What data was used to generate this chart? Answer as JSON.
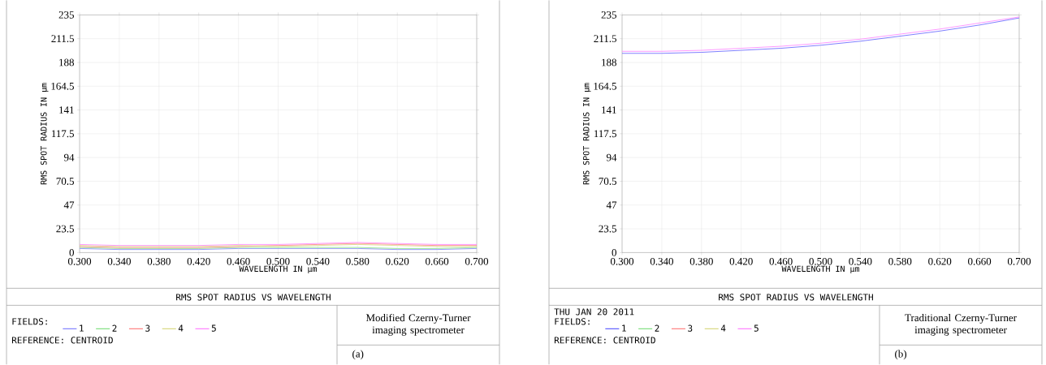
{
  "chart_data": [
    {
      "type": "line",
      "title": "RMS SPOT RADIUS VS WAVELENGTH",
      "xlabel": "WAVELENGTH IN µm",
      "ylabel": "RMS SPOT RADIUS IN µm",
      "x": [
        0.3,
        0.34,
        0.38,
        0.42,
        0.46,
        0.5,
        0.54,
        0.58,
        0.62,
        0.66,
        0.7
      ],
      "series": [
        {
          "name": "1",
          "color": "#8080ff",
          "values": [
            4,
            3,
            3,
            3,
            4,
            4,
            4,
            4,
            3,
            3,
            4
          ]
        },
        {
          "name": "2",
          "color": "#80e080",
          "values": [
            5,
            4,
            4,
            4,
            5,
            5,
            5,
            5,
            4,
            4,
            5
          ]
        },
        {
          "name": "3",
          "color": "#ff8080",
          "values": [
            6,
            5,
            5,
            5,
            6,
            7,
            8,
            9,
            8,
            7,
            7
          ]
        },
        {
          "name": "4",
          "color": "#d8d880",
          "values": [
            7,
            6,
            6,
            6,
            7,
            6,
            7,
            8,
            7,
            6,
            6
          ]
        },
        {
          "name": "5",
          "color": "#ff80ff",
          "values": [
            8,
            7,
            7,
            7,
            8,
            8,
            9,
            10,
            9,
            8,
            8
          ]
        }
      ],
      "xlim": [
        0.3,
        0.7
      ],
      "ylim": [
        0,
        235
      ],
      "xticks": [
        {
          "value": 0.3,
          "label": "0.300"
        },
        {
          "value": 0.34,
          "label": "0.340"
        },
        {
          "value": 0.38,
          "label": "0.380"
        },
        {
          "value": 0.42,
          "label": "0.420"
        },
        {
          "value": 0.46,
          "label": "0.460"
        },
        {
          "value": 0.5,
          "label": "0.500"
        },
        {
          "value": 0.54,
          "label": "0.540"
        },
        {
          "value": 0.58,
          "label": "0.580"
        },
        {
          "value": 0.62,
          "label": "0.620"
        },
        {
          "value": 0.66,
          "label": "0.660"
        },
        {
          "value": 0.7,
          "label": "0.700"
        }
      ],
      "yticks": [
        0,
        23.5,
        47,
        70.5,
        94,
        117.5,
        141,
        164.5,
        188,
        211.5,
        235
      ],
      "grid": true,
      "legend": "bottom",
      "marker": "none",
      "line_style": "solid",
      "annotations": [
        "FIELDS:",
        "REFERENCE: CENTROID",
        "Modified Czerny-Turner imaging spectrometer",
        "(a)"
      ]
    },
    {
      "type": "line",
      "title": "RMS SPOT RADIUS VS WAVELENGTH",
      "xlabel": "WAVELENGTH IN µm",
      "ylabel": "RMS SPOT RADIUS IN µm",
      "x": [
        0.3,
        0.34,
        0.38,
        0.42,
        0.46,
        0.5,
        0.54,
        0.58,
        0.62,
        0.66,
        0.7
      ],
      "series": [
        {
          "name": "1",
          "color": "#6060ff",
          "values": [
            197,
            197,
            198,
            200,
            202,
            205,
            209,
            214,
            219,
            225,
            232
          ]
        },
        {
          "name": "2",
          "color": "#80e080",
          "values": [
            null,
            null,
            null,
            null,
            null,
            null,
            null,
            null,
            null,
            null,
            null
          ]
        },
        {
          "name": "3",
          "color": "#ff8080",
          "values": [
            null,
            null,
            null,
            null,
            null,
            null,
            null,
            null,
            null,
            null,
            null
          ]
        },
        {
          "name": "4",
          "color": "#d8d880",
          "values": [
            null,
            null,
            null,
            null,
            null,
            null,
            null,
            null,
            null,
            null,
            null
          ]
        },
        {
          "name": "5",
          "color": "#ff80ff",
          "values": [
            199,
            199,
            200,
            202,
            204,
            207,
            211,
            216,
            221,
            227,
            233
          ]
        }
      ],
      "xlim": [
        0.3,
        0.7
      ],
      "ylim": [
        0,
        235
      ],
      "xticks": [
        {
          "value": 0.3,
          "label": "0.300"
        },
        {
          "value": 0.34,
          "label": "0.340"
        },
        {
          "value": 0.38,
          "label": "0.380"
        },
        {
          "value": 0.42,
          "label": "0.420"
        },
        {
          "value": 0.46,
          "label": "0.460"
        },
        {
          "value": 0.5,
          "label": "0.500"
        },
        {
          "value": 0.54,
          "label": "0.540"
        },
        {
          "value": 0.58,
          "label": "0.580"
        },
        {
          "value": 0.62,
          "label": "0.620"
        },
        {
          "value": 0.66,
          "label": "0.660"
        },
        {
          "value": 0.7,
          "label": "0.700"
        }
      ],
      "yticks": [
        0,
        23.5,
        47,
        70.5,
        94,
        117.5,
        141,
        164.5,
        188,
        211.5,
        235
      ],
      "grid": true,
      "legend": "bottom",
      "marker": "none",
      "line_style": "solid",
      "annotations": [
        "THU JAN 20 2011",
        "FIELDS:",
        "REFERENCE: CENTROID",
        "Traditional Czerny-Turner imaging spectrometer",
        "(b)"
      ]
    }
  ]
}
